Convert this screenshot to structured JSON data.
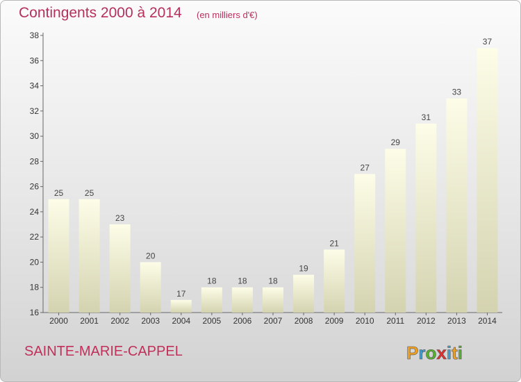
{
  "header": {
    "title": "Contingents 2000 à 2014",
    "subtitle": "(en milliers d'€)"
  },
  "footer": {
    "commune": "SAINTE-MARIE-CAPPEL",
    "logo_text": "Proxiti"
  },
  "colors": {
    "title": "#b5305a",
    "bar_top": "#fdfde8",
    "bar_bottom": "#d4d3b0",
    "logo_p": "#f0a020",
    "logo_r": "#3ca0d8",
    "logo_o": "#58b030",
    "logo_x": "#e03030",
    "logo_i": "#3ca0d8",
    "logo_t": "#f0a020",
    "logo_i2": "#58b030"
  },
  "chart_data": {
    "type": "bar",
    "title": "Contingents 2000 à 2014",
    "ylabel": "",
    "xlabel": "",
    "categories": [
      "2000",
      "2001",
      "2002",
      "2003",
      "2004",
      "2005",
      "2006",
      "2007",
      "2008",
      "2009",
      "2010",
      "2011",
      "2012",
      "2013",
      "2014"
    ],
    "values": [
      25,
      25,
      23,
      20,
      17,
      18,
      18,
      18,
      19,
      21,
      27,
      29,
      31,
      33,
      37
    ],
    "ylim": [
      16,
      38
    ],
    "yticks": [
      16,
      18,
      20,
      22,
      24,
      26,
      28,
      30,
      32,
      34,
      36,
      38
    ],
    "grid": false,
    "data_labels": true
  }
}
